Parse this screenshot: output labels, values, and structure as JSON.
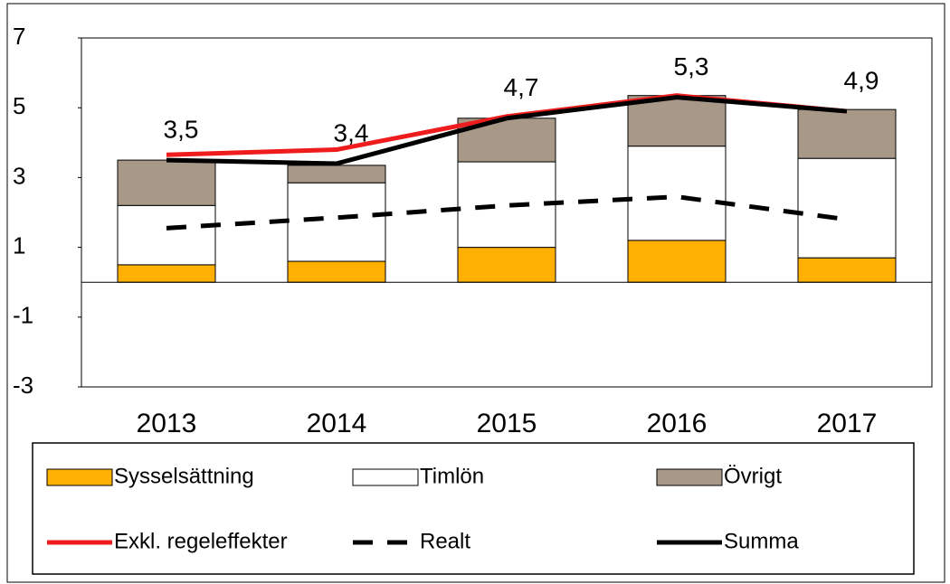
{
  "chart_data": {
    "type": "bar",
    "categories": [
      "2013",
      "2014",
      "2015",
      "2016",
      "2017"
    ],
    "ylim": [
      -3,
      7
    ],
    "yticks": [
      -3,
      -1,
      1,
      3,
      5,
      7
    ],
    "series": [
      {
        "name": "Sysselsättning",
        "type": "bar",
        "color": "#ffb000",
        "values": [
          0.5,
          0.6,
          1.0,
          1.2,
          0.7
        ]
      },
      {
        "name": "Timlön",
        "type": "bar",
        "color": "#ffffff",
        "values": [
          1.7,
          2.25,
          2.45,
          2.7,
          2.85
        ]
      },
      {
        "name": "Övrigt",
        "type": "bar",
        "color": "#a89888",
        "values": [
          1.3,
          0.5,
          1.25,
          1.45,
          1.4
        ]
      },
      {
        "name": "Exkl. regeleffekter",
        "type": "line",
        "color": "#ee1c1c",
        "values": [
          3.65,
          3.8,
          4.75,
          5.35,
          4.9
        ]
      },
      {
        "name": "Realt",
        "type": "line",
        "dashed": true,
        "color": "#000000",
        "values": [
          1.55,
          1.85,
          2.2,
          2.45,
          1.8
        ]
      },
      {
        "name": "Summa",
        "type": "line",
        "color": "#000000",
        "values": [
          3.5,
          3.4,
          4.7,
          5.3,
          4.9
        ],
        "value_labels": [
          "3,5",
          "3,4",
          "4,7",
          "5,3",
          "4,9"
        ]
      }
    ]
  }
}
